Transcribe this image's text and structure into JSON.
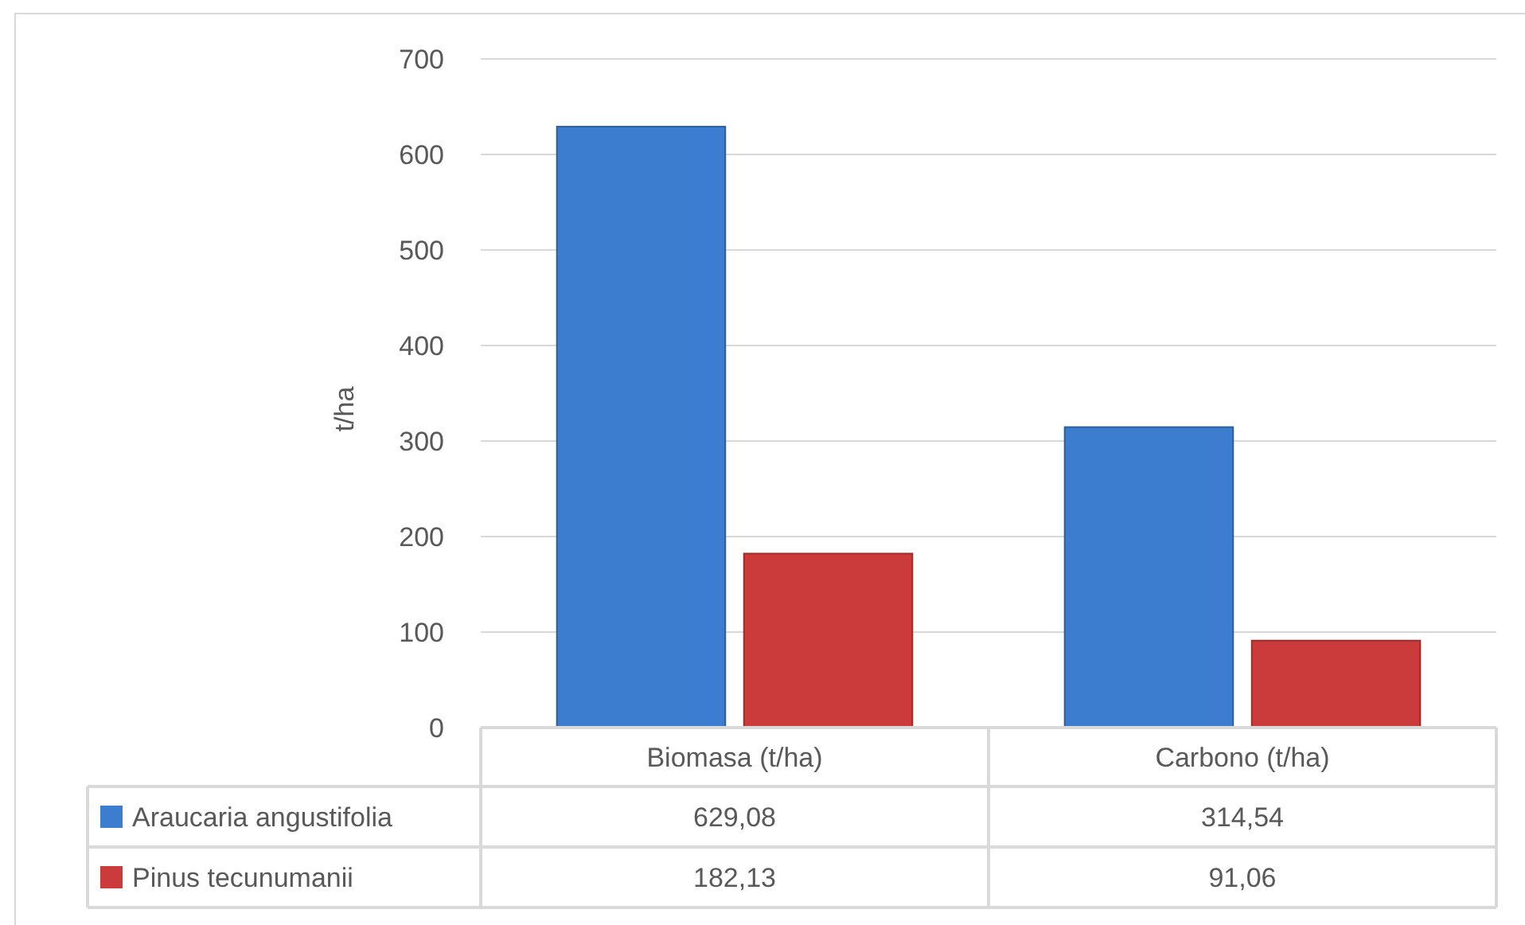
{
  "chart_data": {
    "type": "bar",
    "ylabel": "t/ha",
    "categories": [
      "Biomasa (t/ha)",
      "Carbono (t/ha)"
    ],
    "series": [
      {
        "name": "Araucaria angustifolia",
        "color": "#3c7dd0",
        "values": [
          629.08,
          314.54
        ],
        "value_labels": [
          "629,08",
          "314,54"
        ]
      },
      {
        "name": "Pinus tecunumanii",
        "color": "#cc3b3b",
        "values": [
          182.13,
          91.06
        ],
        "value_labels": [
          "182,13",
          "91,06"
        ]
      }
    ],
    "ylim": [
      0,
      700
    ],
    "yticks": [
      0,
      100,
      200,
      300,
      400,
      500,
      600,
      700
    ],
    "grid": "y",
    "legend": "bottom left"
  }
}
